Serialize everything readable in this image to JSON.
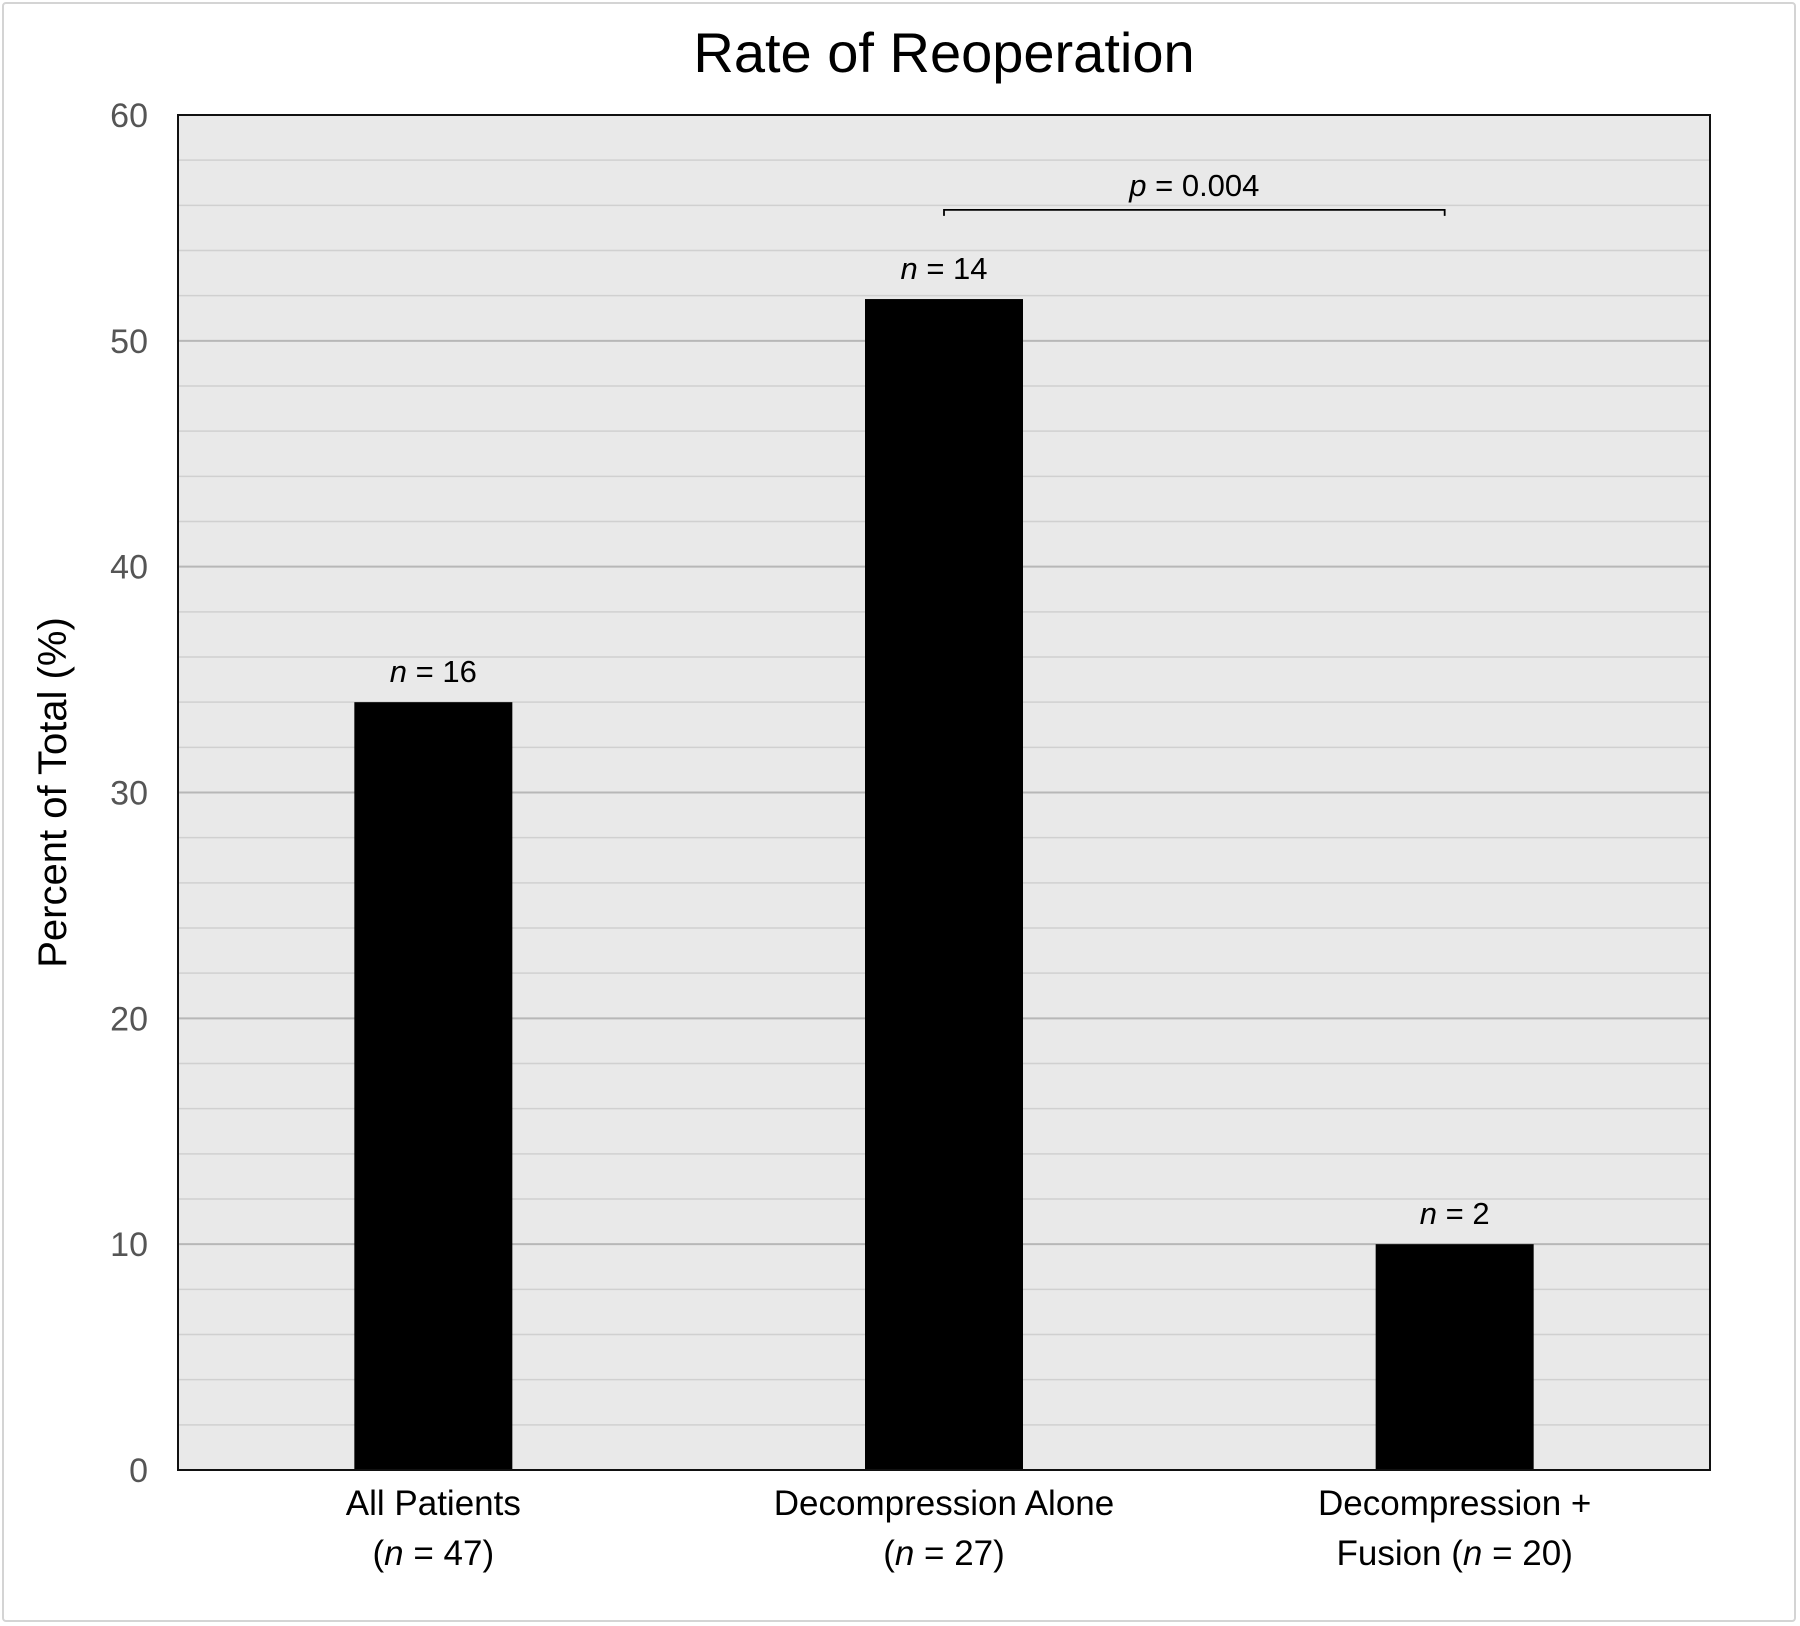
{
  "chart_data": {
    "type": "bar",
    "title": "Rate of Reoperation",
    "xlabel": "",
    "ylabel": "Percent of Total (%)",
    "ylim": [
      0,
      60
    ],
    "y_major_ticks": [
      0,
      10,
      20,
      30,
      40,
      50,
      60
    ],
    "y_minor_step": 2,
    "grid": true,
    "legend": "none",
    "categories": [
      [
        "All Patients",
        [
          {
            "t": "(",
            "i": false
          },
          {
            "t": "n",
            "i": true
          },
          {
            "t": " = 47)",
            "i": false
          }
        ]
      ],
      [
        "Decompression Alone",
        [
          {
            "t": "(",
            "i": false
          },
          {
            "t": "n",
            "i": true
          },
          {
            "t": " = 27)",
            "i": false
          }
        ]
      ],
      [
        "Decompression +",
        [
          {
            "t": "Fusion (",
            "i": false
          },
          {
            "t": "n",
            "i": true
          },
          {
            "t": " = 20)",
            "i": false
          }
        ]
      ]
    ],
    "values": [
      34,
      51.85,
      10
    ],
    "data_labels": [
      [
        {
          "t": "n",
          "i": true
        },
        {
          "t": " = 16",
          "i": false
        }
      ],
      [
        {
          "t": "n",
          "i": true
        },
        {
          "t": " = 14",
          "i": false
        }
      ],
      [
        {
          "t": "n",
          "i": true
        },
        {
          "t": " = 2",
          "i": false
        }
      ]
    ],
    "annotation": {
      "from_category": 1,
      "to_category": 2,
      "y": 55.8,
      "label": [
        {
          "t": "p",
          "i": true
        },
        {
          "t": " = 0.004",
          "i": false
        }
      ]
    },
    "colors": {
      "bar": "#000000",
      "plot_background": "#e9e9e9",
      "major_grid": "#b7b7b7",
      "minor_grid": "#d0d0d0",
      "tick_label": "#555555",
      "text": "#000000"
    }
  }
}
